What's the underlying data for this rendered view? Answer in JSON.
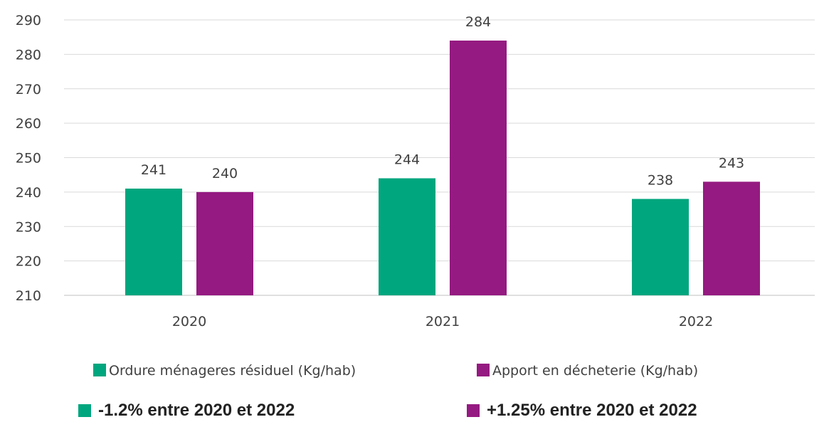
{
  "chart_data": {
    "type": "bar",
    "categories": [
      "2020",
      "2021",
      "2022"
    ],
    "series": [
      {
        "name": "Ordure ménageres résiduel (Kg/hab)",
        "values": [
          241,
          244,
          238
        ],
        "color": "#00a67e"
      },
      {
        "name": "Apport en décheterie (Kg/hab)",
        "values": [
          240,
          284,
          243
        ],
        "color": "#951a81"
      }
    ],
    "ylim": [
      210,
      290
    ],
    "yticks": [
      210,
      220,
      230,
      240,
      250,
      260,
      270,
      280,
      290
    ],
    "grid": true,
    "legend": "bottom",
    "title": "",
    "xlabel": "",
    "ylabel": ""
  },
  "notes": [
    {
      "text": "-1.2% entre 2020 et 2022",
      "color": "#00a67e"
    },
    {
      "text": "+1.25% entre 2020 et 2022",
      "color": "#951a81"
    }
  ]
}
